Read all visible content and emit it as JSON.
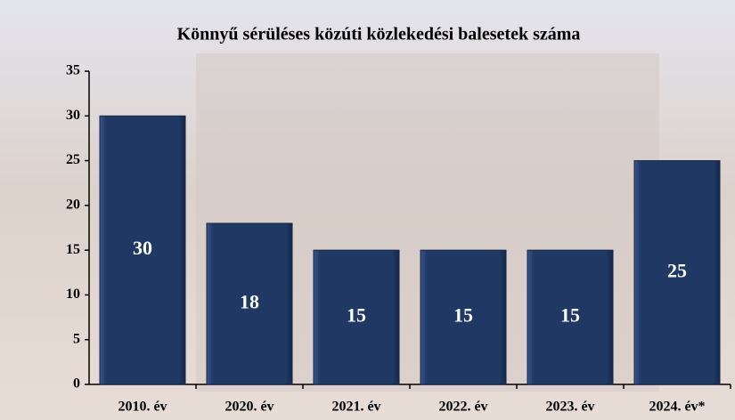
{
  "chart_data": {
    "type": "bar",
    "title": "Könnyű sérüléses közúti közlekedési balesetek száma",
    "categories": [
      "2010. év",
      "2020. év",
      "2021. év",
      "2022. év",
      "2023. év",
      "2024. év*"
    ],
    "values": [
      30,
      18,
      15,
      15,
      15,
      25
    ],
    "color": "#1f3864",
    "ylim": [
      0,
      35
    ],
    "yticks": [
      0,
      5,
      10,
      15,
      20,
      25,
      30,
      35
    ],
    "grid": false
  }
}
